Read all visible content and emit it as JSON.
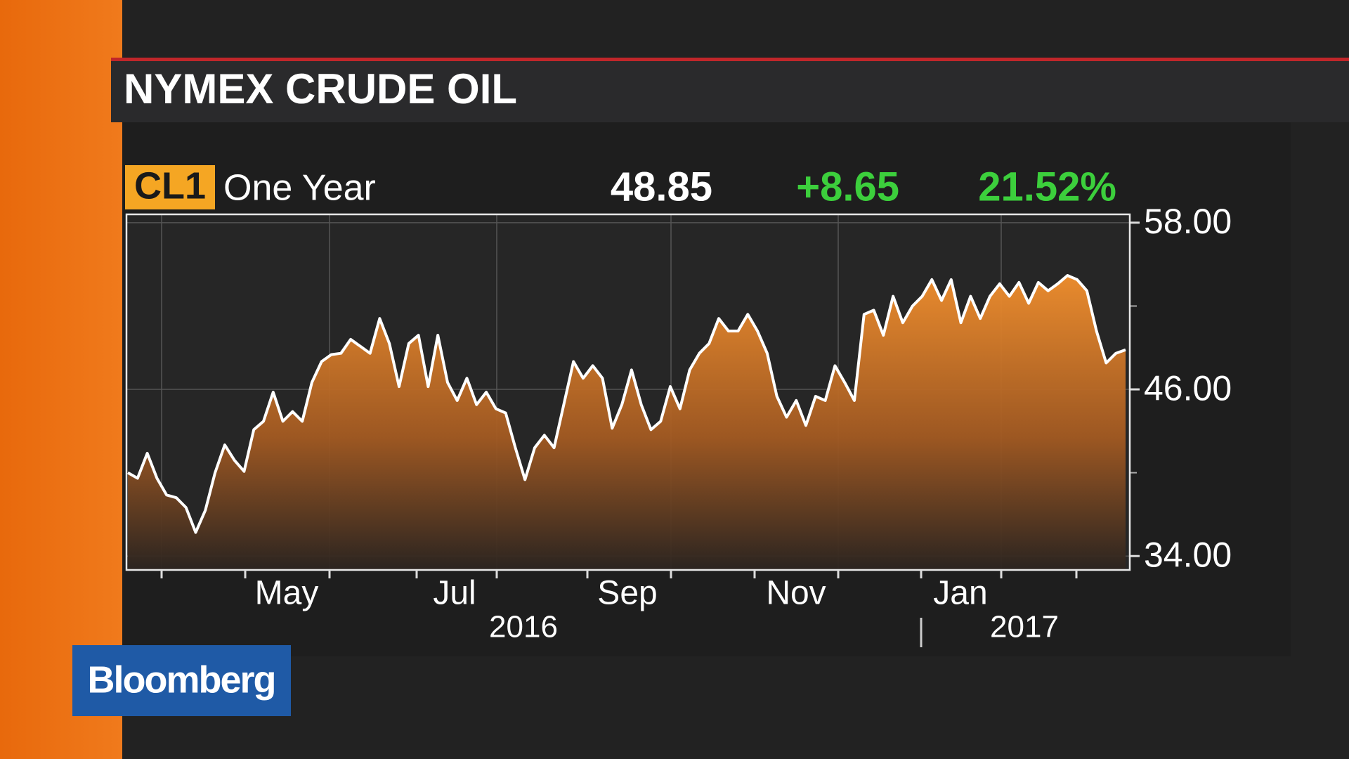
{
  "header": {
    "ticker": "CL1",
    "period": "One Year",
    "last": "48.85",
    "change": "+8.65",
    "change_pct": "21.52%",
    "brand": "Bloomberg"
  },
  "chart_data": {
    "type": "area",
    "title": "NYMEX CRUDE OIL",
    "values": [
      40.0,
      39.6,
      41.4,
      39.6,
      38.4,
      38.2,
      37.5,
      35.7,
      37.3,
      40.0,
      42.0,
      40.9,
      40.1,
      43.1,
      43.7,
      45.8,
      43.7,
      44.4,
      43.7,
      46.5,
      48.0,
      48.5,
      48.6,
      49.6,
      49.1,
      48.6,
      51.1,
      49.3,
      46.2,
      49.3,
      49.9,
      46.2,
      49.9,
      46.5,
      45.2,
      46.8,
      44.9,
      45.8,
      44.6,
      44.3,
      41.8,
      39.5,
      41.8,
      42.7,
      41.8,
      44.9,
      48.0,
      46.8,
      47.7,
      46.8,
      43.2,
      44.9,
      47.4,
      44.9,
      43.1,
      43.7,
      46.2,
      44.6,
      47.4,
      48.6,
      49.3,
      51.1,
      50.2,
      50.2,
      51.4,
      50.2,
      48.6,
      45.5,
      44.0,
      45.2,
      43.4,
      45.5,
      45.2,
      47.7,
      46.5,
      45.2,
      51.4,
      51.7,
      49.9,
      52.7,
      50.8,
      52.0,
      52.7,
      53.9,
      52.4,
      53.9,
      50.8,
      52.7,
      51.1,
      52.7,
      53.6,
      52.7,
      53.7,
      52.2,
      53.7,
      53.1,
      53.6,
      54.2,
      53.9,
      53.1,
      50.2,
      47.9,
      48.6,
      48.85
    ],
    "color": "#ffffff",
    "fill": "#f08a2a",
    "ylim": [
      33,
      58.6
    ],
    "yticks": [
      {
        "value": 58,
        "label": "58.00"
      },
      {
        "value": 46,
        "label": "46.00"
      },
      {
        "value": 34,
        "label": "34.00"
      }
    ],
    "yminor": [
      52,
      40
    ],
    "months": [
      "May",
      "Jul",
      "Sep",
      "Nov",
      "Jan"
    ],
    "years": [
      "2016",
      "2017"
    ],
    "grid": true
  }
}
